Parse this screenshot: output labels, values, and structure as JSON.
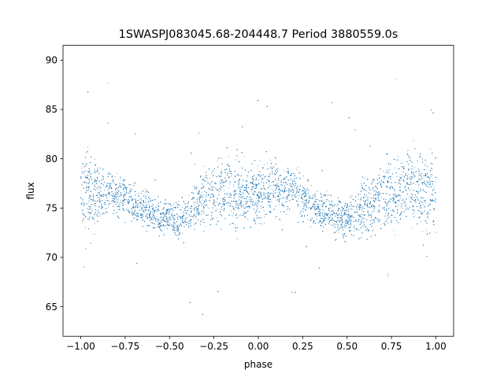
{
  "chart_data": {
    "type": "scatter",
    "title": "1SWASPJ083045.68-204448.7 Period 3880559.0s",
    "xlabel": "phase",
    "ylabel": "flux",
    "xlim": [
      -1.1,
      1.1
    ],
    "ylim": [
      62,
      91.5
    ],
    "xticks": [
      -1.0,
      -0.75,
      -0.5,
      -0.25,
      0.0,
      0.25,
      0.5,
      0.75,
      1.0
    ],
    "xtick_labels": [
      "−1.00",
      "−0.75",
      "−0.50",
      "−0.25",
      "0.00",
      "0.25",
      "0.50",
      "0.75",
      "1.00"
    ],
    "yticks": [
      65,
      70,
      75,
      80,
      85,
      90
    ],
    "ytick_labels": [
      "65",
      "70",
      "75",
      "80",
      "85",
      "90"
    ],
    "grid": false,
    "marker_color": "#1f77b4",
    "series": [
      {
        "x_range": [
          -1.0,
          1.0
        ],
        "approx_point_count": 12000,
        "envelope": {
          "phase": [
            -1.0,
            -0.95,
            -0.9,
            -0.8,
            -0.7,
            -0.6,
            -0.5,
            -0.45,
            -0.4,
            -0.3,
            -0.25,
            -0.2,
            -0.1,
            0.0,
            0.05,
            0.1,
            0.2,
            0.25,
            0.3,
            0.4,
            0.45,
            0.5,
            0.6,
            0.7,
            0.8,
            0.9,
            0.95,
            1.0
          ],
          "upper_flux": [
            82.5,
            82.0,
            80.5,
            79.5,
            78.0,
            77.0,
            76.5,
            76.0,
            77.5,
            80.0,
            81.5,
            82.0,
            81.0,
            80.0,
            81.5,
            80.5,
            80.0,
            79.0,
            78.0,
            77.0,
            76.5,
            77.0,
            79.0,
            81.0,
            82.0,
            82.5,
            82.0,
            82.5
          ],
          "lower_flux": [
            71.5,
            71.0,
            73.0,
            73.5,
            73.0,
            72.0,
            71.5,
            71.0,
            71.5,
            72.0,
            72.5,
            72.0,
            72.0,
            72.5,
            73.0,
            73.5,
            73.5,
            73.0,
            72.5,
            72.0,
            71.5,
            71.0,
            71.0,
            71.5,
            72.0,
            72.0,
            71.5,
            71.5
          ]
        },
        "outliers_flux_range": [
          63.5,
          89.5
        ]
      }
    ]
  }
}
